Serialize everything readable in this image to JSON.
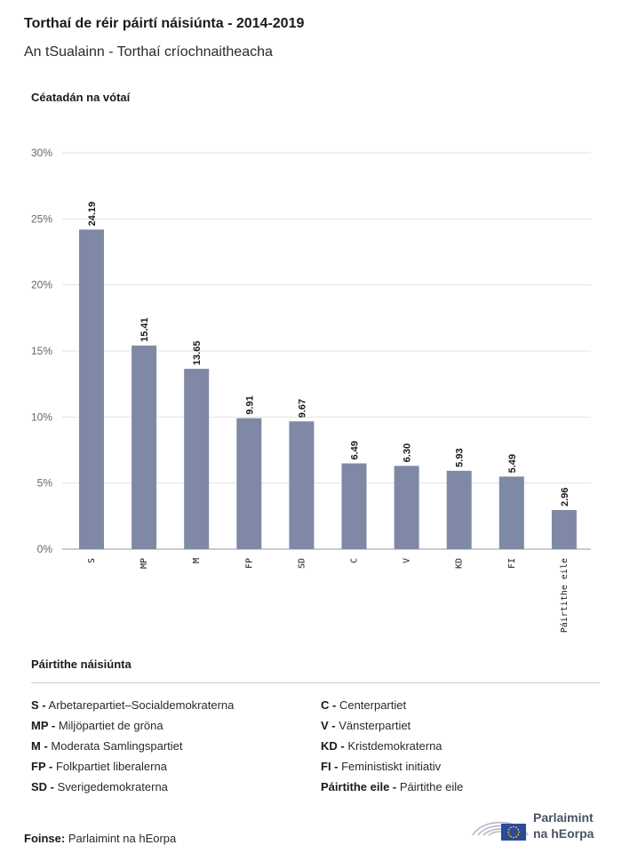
{
  "header": {
    "title": "Torthaí de réir páirtí náisiúnta - 2014-2019",
    "subtitle": "An tSualainn - Torthaí críochnaitheacha"
  },
  "chart_data": {
    "type": "bar",
    "ylabel": "Céatadán na vótaí",
    "categories": [
      "S",
      "MP",
      "M",
      "FP",
      "SD",
      "C",
      "V",
      "KD",
      "FI",
      "Páirtithe eile"
    ],
    "values": [
      24.19,
      15.41,
      13.65,
      9.91,
      9.67,
      6.49,
      6.3,
      5.93,
      5.49,
      2.96
    ],
    "value_labels": [
      "24.19",
      "15.41",
      "13.65",
      "9.91",
      "9.67",
      "6.49",
      "6.30",
      "5.93",
      "5.49",
      "2.96"
    ],
    "ylim": [
      0,
      30
    ],
    "yticks": [
      0,
      5,
      10,
      15,
      20,
      25,
      30
    ],
    "ytick_labels": [
      "0%",
      "5%",
      "10%",
      "15%",
      "20%",
      "25%",
      "30%"
    ],
    "bar_color": "#7f89a6",
    "grid": true
  },
  "legend": {
    "title": "Páirtithe náisiúnta",
    "items": [
      {
        "abbr": "S -",
        "name": "Arbetarepartiet–Socialdemokraterna"
      },
      {
        "abbr": "MP -",
        "name": "Miljöpartiet de gröna"
      },
      {
        "abbr": "M -",
        "name": "Moderata Samlingspartiet"
      },
      {
        "abbr": "FP -",
        "name": "Folkpartiet liberalerna"
      },
      {
        "abbr": "SD -",
        "name": "Sverigedemokraterna"
      },
      {
        "abbr": "C -",
        "name": "Centerpartiet"
      },
      {
        "abbr": "V -",
        "name": "Vänsterpartiet"
      },
      {
        "abbr": "KD -",
        "name": "Kristdemokraterna"
      },
      {
        "abbr": "FI -",
        "name": "Feministiskt initiativ"
      },
      {
        "abbr": "Páirtithe eile -",
        "name": "Páirtithe eile"
      }
    ]
  },
  "footer": {
    "source_label": "Foinse:",
    "source_text": "Parlaimint na hEorpa",
    "logo_line1": "Parlaimint",
    "logo_line2": "na hEorpa"
  },
  "colors": {
    "logo_blue": "#2b4a9c",
    "logo_star": "#ffd400"
  }
}
